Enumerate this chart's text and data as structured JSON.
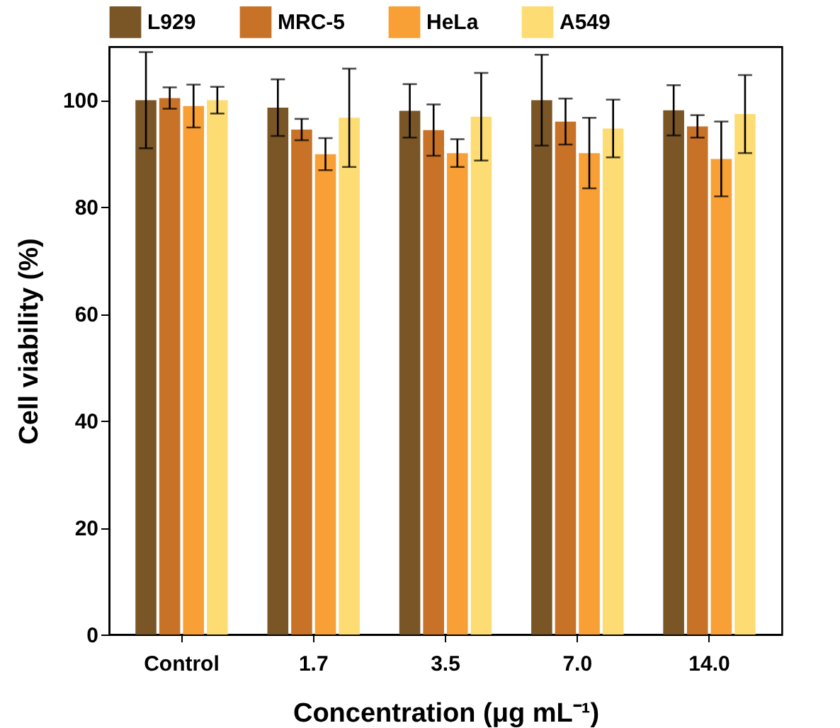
{
  "chart_data": {
    "type": "bar",
    "xlabel": "Concentration (μg mL⁻¹)",
    "ylabel": "Cell viability (%)",
    "categories": [
      "Control",
      "1.7",
      "3.5",
      "7.0",
      "14.0"
    ],
    "series": [
      {
        "name": "L929",
        "color": "#7a5526",
        "values": [
          100,
          98.6,
          98.0,
          100,
          98.1
        ],
        "errors": [
          9,
          5.3,
          5,
          8.5,
          4.7
        ]
      },
      {
        "name": "MRC-5",
        "color": "#c87228",
        "values": [
          100.4,
          94.5,
          94.4,
          96,
          95.1
        ],
        "errors": [
          2,
          2,
          4.8,
          4.3,
          2.1
        ]
      },
      {
        "name": "HeLa",
        "color": "#f8a035",
        "values": [
          98.9,
          89.9,
          90.1,
          90.1,
          89
        ],
        "errors": [
          4,
          3,
          2.6,
          6.6,
          7
        ]
      },
      {
        "name": "A549",
        "color": "#fddc74",
        "values": [
          100,
          96.7,
          96.9,
          94.7,
          97.4
        ],
        "errors": [
          2.5,
          9.2,
          8.2,
          5.4,
          7.3
        ]
      }
    ],
    "ylim": [
      0,
      110
    ],
    "yticks": [
      0,
      20,
      40,
      60,
      80,
      100
    ],
    "legend": "top"
  }
}
